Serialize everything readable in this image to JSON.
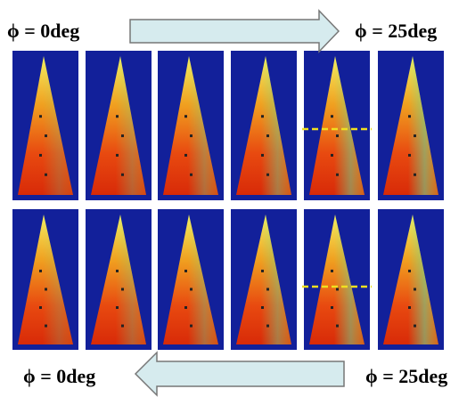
{
  "labels": {
    "top_left": "ϕ = 0deg",
    "top_right": "ϕ = 25deg",
    "bottom_left": "ϕ = 0deg",
    "bottom_right": "ϕ = 25deg"
  }
}
